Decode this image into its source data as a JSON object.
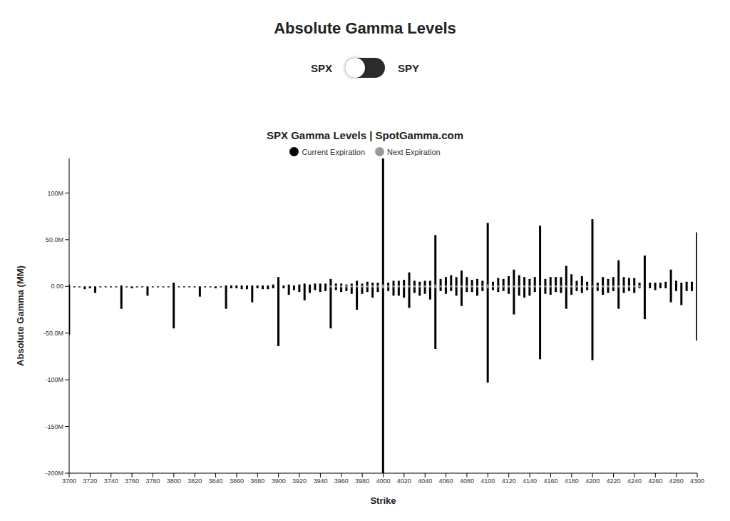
{
  "header": {
    "title": "Absolute Gamma Levels",
    "toggle": {
      "left": "SPX",
      "right": "SPY"
    }
  },
  "chart_data": {
    "type": "bar",
    "title": "SPX Gamma Levels | SpotGamma.com",
    "x_label": "Strike",
    "y_label": "Absolute Gamma (MM)",
    "legend": "top",
    "grid": false,
    "x": [
      3700,
      3705,
      3710,
      3715,
      3720,
      3725,
      3730,
      3735,
      3740,
      3745,
      3750,
      3755,
      3760,
      3765,
      3770,
      3775,
      3780,
      3785,
      3790,
      3795,
      3800,
      3805,
      3810,
      3815,
      3820,
      3825,
      3830,
      3835,
      3840,
      3845,
      3850,
      3855,
      3860,
      3865,
      3870,
      3875,
      3880,
      3885,
      3890,
      3895,
      3900,
      3905,
      3910,
      3915,
      3920,
      3925,
      3930,
      3935,
      3940,
      3945,
      3950,
      3955,
      3960,
      3965,
      3970,
      3975,
      3980,
      3985,
      3990,
      3995,
      4000,
      4005,
      4010,
      4015,
      4020,
      4025,
      4030,
      4035,
      4040,
      4045,
      4050,
      4055,
      4060,
      4065,
      4070,
      4075,
      4080,
      4085,
      4090,
      4095,
      4100,
      4105,
      4110,
      4115,
      4120,
      4125,
      4130,
      4135,
      4140,
      4145,
      4150,
      4155,
      4160,
      4165,
      4170,
      4175,
      4180,
      4185,
      4190,
      4195,
      4200,
      4205,
      4210,
      4215,
      4220,
      4225,
      4230,
      4235,
      4240,
      4245,
      4250,
      4255,
      4260,
      4265,
      4270,
      4275,
      4280,
      4285,
      4290,
      4295,
      4300
    ],
    "xlim": [
      3700,
      4300
    ],
    "xticks": [
      3700,
      3720,
      3740,
      3760,
      3780,
      3800,
      3820,
      3840,
      3860,
      3880,
      3900,
      3920,
      3940,
      3960,
      3980,
      4000,
      4020,
      4040,
      4060,
      4080,
      4100,
      4120,
      4140,
      4160,
      4180,
      4200,
      4220,
      4240,
      4260,
      4280,
      4300
    ],
    "ylim": [
      -200,
      137
    ],
    "yticks": [
      {
        "value": -200,
        "label": "-200M"
      },
      {
        "value": -150,
        "label": "-150M"
      },
      {
        "value": -100,
        "label": "-100M"
      },
      {
        "value": -50,
        "label": "-50.0M"
      },
      {
        "value": 0,
        "label": "0.00"
      },
      {
        "value": 50,
        "label": "50.0M"
      },
      {
        "value": 100,
        "label": "100M"
      }
    ],
    "series": [
      {
        "name": "Current Expiration",
        "color": "#000000",
        "values": [
          2,
          0,
          0,
          0,
          0,
          0,
          0,
          0,
          0,
          0,
          1,
          0,
          0,
          0,
          0,
          0,
          0,
          0,
          0,
          0,
          4,
          0,
          0,
          0,
          0,
          0,
          0,
          0,
          0,
          0,
          1,
          1,
          1,
          1,
          1,
          1,
          1,
          1,
          1,
          2,
          10,
          1,
          2,
          1,
          2,
          3,
          2,
          3,
          3,
          3,
          8,
          3,
          3,
          2,
          3,
          6,
          3,
          5,
          4,
          4,
          137,
          4,
          6,
          6,
          7,
          15,
          6,
          5,
          6,
          6,
          55,
          8,
          10,
          12,
          10,
          17,
          10,
          7,
          8,
          6,
          68,
          5,
          9,
          8,
          11,
          18,
          12,
          10,
          8,
          10,
          65,
          8,
          10,
          10,
          10,
          22,
          13,
          6,
          11,
          5,
          72,
          4,
          10,
          8,
          10,
          28,
          10,
          9,
          9,
          4,
          33,
          4,
          4,
          4,
          5,
          18,
          6,
          4,
          5,
          5,
          58
        ],
        "negative_values": [
          -52,
          -1,
          -1,
          -3,
          -2,
          -7,
          -1,
          -1,
          -1,
          -1,
          -24,
          -1,
          -2,
          -1,
          -1,
          -10,
          -1,
          -1,
          -1,
          -1,
          -45,
          -1,
          -1,
          -1,
          -1,
          -11,
          -1,
          -1,
          -2,
          -1,
          -24,
          -2,
          -2,
          -3,
          -3,
          -17,
          -2,
          -3,
          -3,
          -2,
          -64,
          -2,
          -9,
          -4,
          -6,
          -15,
          -7,
          -4,
          -6,
          -5,
          -45,
          -4,
          -6,
          -5,
          -8,
          -25,
          -8,
          -6,
          -12,
          -6,
          -200,
          -5,
          -10,
          -10,
          -12,
          -23,
          -7,
          -10,
          -8,
          -14,
          -67,
          -5,
          -8,
          -5,
          -10,
          -21,
          -6,
          -6,
          -10,
          -5,
          -103,
          -4,
          -6,
          -5,
          -8,
          -30,
          -10,
          -12,
          -10,
          -6,
          -78,
          -8,
          -9,
          -6,
          -7,
          -24,
          -9,
          -5,
          -7,
          -4,
          -79,
          -5,
          -9,
          -7,
          -5,
          -24,
          -7,
          -5,
          -7,
          -2,
          -35,
          -2,
          -4,
          -2,
          -2,
          -17,
          -5,
          -20,
          -5,
          -5,
          -58
        ]
      },
      {
        "name": "Next Expiration",
        "color": "#999999",
        "values": [
          0,
          0,
          0,
          0,
          0,
          0,
          0,
          0,
          0,
          0,
          0,
          0,
          0,
          0,
          0,
          0,
          0,
          0,
          0,
          0,
          0,
          0,
          0,
          0,
          0,
          0,
          0,
          0,
          0,
          0,
          0,
          0,
          0,
          0,
          0,
          0,
          0,
          0,
          0,
          0,
          0,
          0,
          0,
          0,
          0,
          0,
          0,
          0,
          0,
          0,
          1,
          1,
          1,
          1,
          1,
          1,
          1,
          1,
          1,
          1,
          2,
          1,
          1,
          1,
          1,
          1,
          1,
          1,
          1,
          1,
          2,
          1,
          1,
          1,
          1,
          1,
          1,
          1,
          1,
          1,
          2,
          1,
          1,
          1,
          1,
          1,
          1,
          1,
          1,
          1,
          1,
          1,
          1,
          1,
          1,
          1,
          1,
          1,
          1,
          1,
          1,
          1,
          1,
          1,
          1,
          1,
          1,
          1,
          1,
          1,
          0,
          0,
          0,
          0,
          0,
          0,
          0,
          0,
          0,
          0,
          0
        ],
        "negative_values": [
          0,
          0,
          0,
          0,
          0,
          0,
          0,
          0,
          0,
          0,
          0,
          0,
          0,
          0,
          0,
          0,
          0,
          0,
          0,
          0,
          0,
          0,
          0,
          0,
          0,
          0,
          0,
          0,
          0,
          0,
          0,
          0,
          0,
          0,
          0,
          0,
          0,
          0,
          0,
          0,
          0,
          0,
          0,
          0,
          0,
          0,
          0,
          0,
          0,
          0,
          -1,
          -1,
          -1,
          -1,
          -1,
          -1,
          -1,
          -1,
          -1,
          -1,
          -2,
          -1,
          -1,
          -1,
          -1,
          -1,
          -1,
          -1,
          -1,
          -1,
          -2,
          -1,
          -1,
          -1,
          -1,
          -1,
          -1,
          -1,
          -1,
          -1,
          -2,
          -1,
          -1,
          -1,
          -1,
          -1,
          -1,
          -1,
          -1,
          -1,
          -1,
          -1,
          -1,
          -1,
          -1,
          -1,
          -1,
          -1,
          -1,
          -1,
          -1,
          -1,
          -1,
          -1,
          -1,
          -1,
          -1,
          -1,
          -1,
          -1,
          0,
          0,
          0,
          0,
          0,
          0,
          0,
          0,
          0,
          0,
          0
        ]
      }
    ]
  }
}
